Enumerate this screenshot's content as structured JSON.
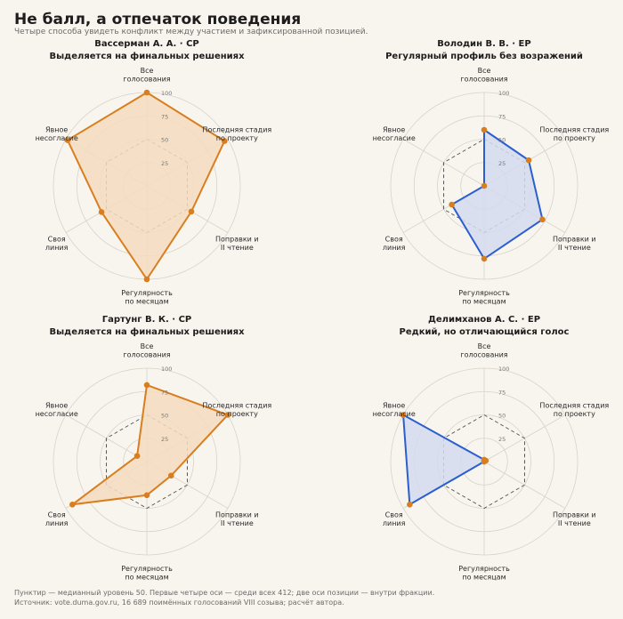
{
  "title": "Не балл, а отпечаток поведения",
  "subtitle": "Четыре способа увидеть конфликт между участием и зафиксированной позицией.",
  "footer": {
    "note": "Пунктир — медианный уровень 50. Первые четыре оси — среди всех 412; две оси позиции — внутри фракции.",
    "source": "Источник: vote.duma.gov.ru, 16 689 поимённых голосований VIII созыва; расчёт автора."
  },
  "colors": {
    "orange": "#d97e1f",
    "blue": "#2b5fcf",
    "orange_fill": "#f4dcbf",
    "blue_fill": "#d3dbef",
    "grid": "#d8d2c8",
    "median": "#555555"
  },
  "chart_data": [
    {
      "type": "radar",
      "title": "Вассерман А. А.  ·  СР",
      "subtitle": "Выделяется на финальных решениях",
      "color": "orange",
      "axes": [
        "Все\nголосования",
        "Последняя стадия\nпо проекту",
        "Поправки и\nII чтение",
        "Регулярность\nпо месяцам",
        "Своя\nлиния",
        "Явное\nнесогласие"
      ],
      "values": [
        100,
        96,
        55,
        100,
        56,
        98
      ],
      "ticks": [
        "25",
        "50",
        "75",
        "100"
      ],
      "rmax": 100,
      "median": 50
    },
    {
      "type": "radar",
      "title": "Володин В. В.  ·  ЕР",
      "subtitle": "Регулярный профиль без возражений",
      "color": "blue",
      "axes": [
        "Все\nголосования",
        "Последняя стадия\nпо проекту",
        "Поправки и\nII чтение",
        "Регулярность\nпо месяцам",
        "Своя\nлиния",
        "Явное\nнесогласие"
      ],
      "values": [
        60,
        55,
        72,
        78,
        40,
        0
      ],
      "ticks": [
        "25",
        "50",
        "75",
        "100"
      ],
      "rmax": 100,
      "median": 50
    },
    {
      "type": "radar",
      "title": "Гартунг В. К.  ·  СР",
      "subtitle": "Выделяется на финальных решениях",
      "color": "orange",
      "axes": [
        "Все\nголосования",
        "Последняя стадия\nпо проекту",
        "Поправки и\nII чтение",
        "Регулярность\nпо месяцам",
        "Своя\nлиния",
        "Явное\nнесогласие"
      ],
      "values": [
        82,
        100,
        30,
        36,
        92,
        12
      ],
      "ticks": [
        "25",
        "50",
        "75",
        "100"
      ],
      "rmax": 100,
      "median": 50
    },
    {
      "type": "radar",
      "title": "Делимханов А. С.  ·  ЕР",
      "subtitle": "Редкий, но отличающийся голос",
      "color": "blue",
      "axes": [
        "Все\nголосования",
        "Последняя стадия\nпо проекту",
        "Поправки и\nII чтение",
        "Регулярность\nпо месяцам",
        "Своя\nлиния",
        "Явное\nнесогласие"
      ],
      "values": [
        2,
        2,
        0,
        0,
        92,
        100
      ],
      "ticks": [
        "25",
        "50",
        "75",
        "100"
      ],
      "rmax": 100,
      "median": 50
    }
  ]
}
